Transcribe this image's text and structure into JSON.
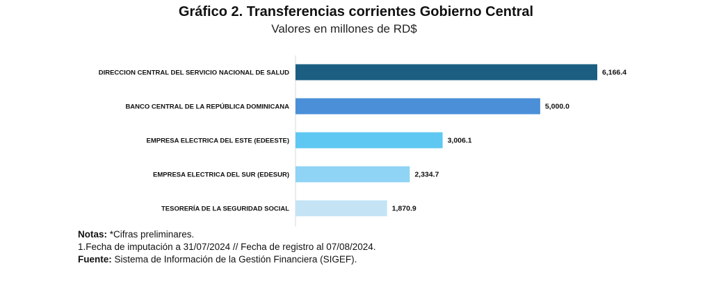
{
  "title": "Gráfico 2. Transferencias corrientes Gobierno Central",
  "subtitle": "Valores en millones de RD$",
  "chart_data": {
    "type": "bar",
    "orientation": "horizontal",
    "categories": [
      "DIRECCION CENTRAL DEL SERVICIO NACIONAL DE SALUD",
      "BANCO CENTRAL DE LA REPÚBLICA DOMINICANA",
      "EMPRESA ELECTRICA DEL ESTE (EDEESTE)",
      "EMPRESA ELECTRICA DEL SUR (EDESUR)",
      "TESORERÍA DE LA SEGURIDAD SOCIAL"
    ],
    "values": [
      6166.4,
      5000.0,
      3006.1,
      2334.7,
      1870.9
    ],
    "value_labels": [
      "6,166.4",
      "5,000.0",
      "3,006.1",
      "2,334.7",
      "1,870.9"
    ],
    "colors": [
      "#1b5e82",
      "#4a8fd8",
      "#5ec8f2",
      "#8fd3f5",
      "#c4e4f6"
    ],
    "xlim": [
      0,
      6166.4
    ],
    "grid": false,
    "legend": "none"
  },
  "notes": {
    "notas_label": "Notas:",
    "notas_text": " *Cifras preliminares.",
    "line2": "1.Fecha de imputación a 31/07/2024 // Fecha de registro al 07/08/2024.",
    "fuente_label": "Fuente:",
    "fuente_text": " Sistema de Información de la Gestión Financiera (SIGEF)."
  }
}
